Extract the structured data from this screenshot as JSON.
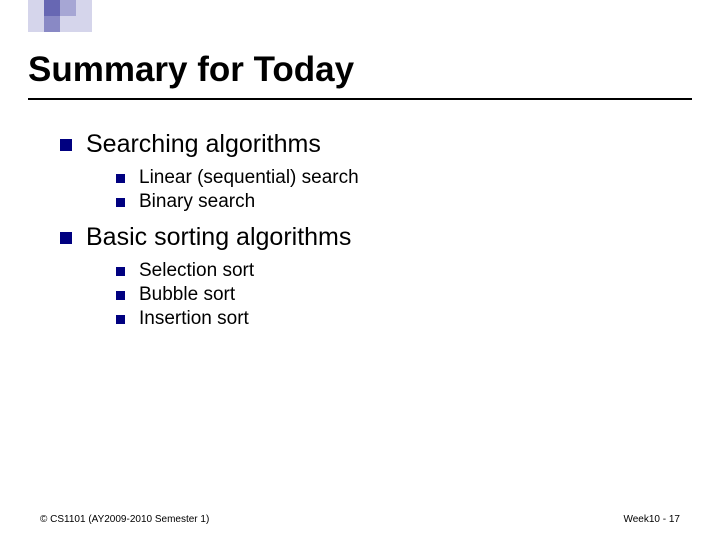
{
  "decoration": {
    "squares": [
      {
        "color": "#d5d5eb"
      },
      {
        "color": "#6767b3"
      },
      {
        "color": "#a6a6d4"
      },
      {
        "color": "#d5d5eb"
      },
      {
        "color": "#d5d5eb"
      },
      {
        "color": "#8989c5"
      },
      {
        "color": "#d5d5eb"
      },
      {
        "color": "#d5d5eb"
      }
    ]
  },
  "title": "Summary for Today",
  "bullets": [
    {
      "text": "Searching algorithms",
      "children": [
        {
          "text": "Linear (sequential) search"
        },
        {
          "text": "Binary search"
        }
      ]
    },
    {
      "text": "Basic sorting algorithms",
      "children": [
        {
          "text": "Selection sort"
        },
        {
          "text": "Bubble sort"
        },
        {
          "text": "Insertion sort"
        }
      ]
    }
  ],
  "footer": {
    "left": "© CS1101 (AY2009-2010 Semester 1)",
    "right": "Week10 - 17"
  },
  "colors": {
    "bullet": "#000080",
    "text": "#000000",
    "background": "#ffffff",
    "underline": "#000000"
  }
}
